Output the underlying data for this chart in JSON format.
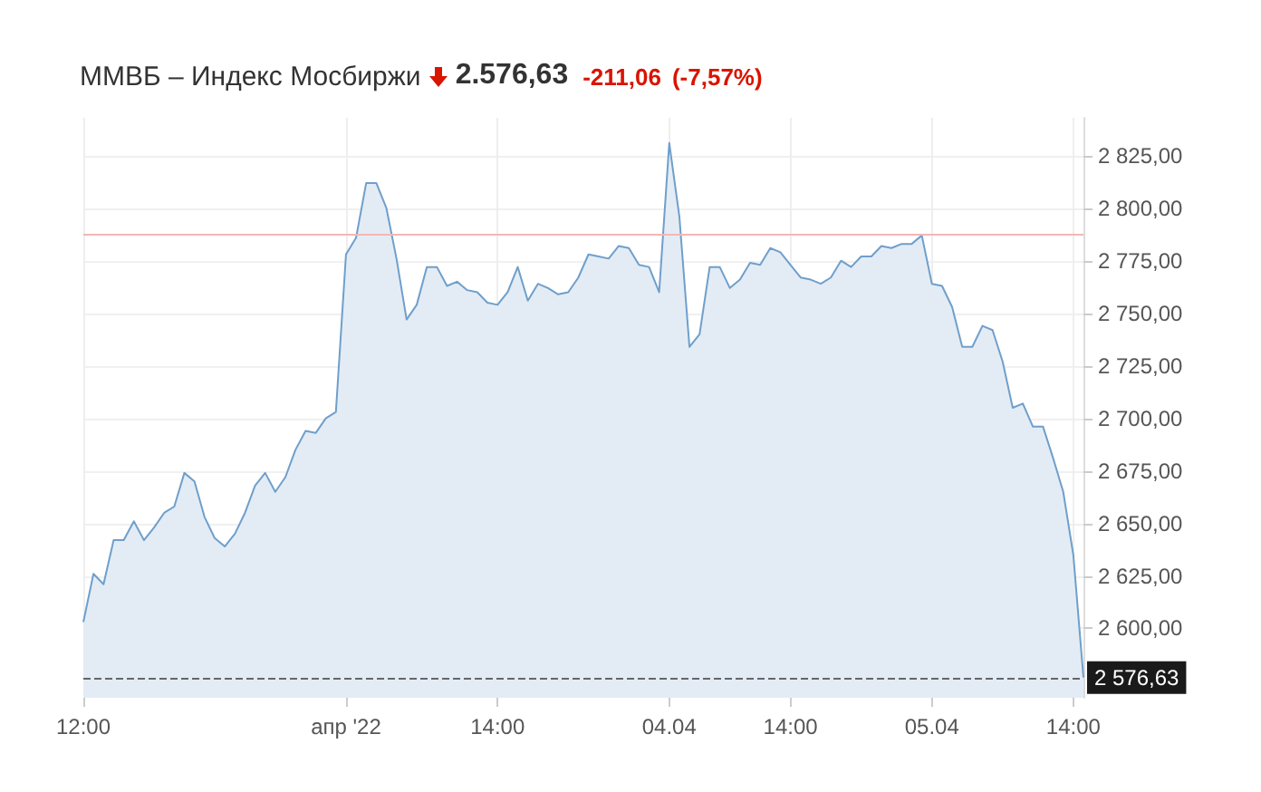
{
  "chart_data": {
    "type": "area",
    "title": "ММВБ – Индекс Мосбиржи",
    "annotations": [
      "2.576,63",
      "-211,06",
      "(-7,57%)"
    ],
    "categories": [
      "12:00",
      null,
      null,
      null,
      null,
      null,
      null,
      null,
      null,
      null,
      null,
      null,
      null,
      null,
      null,
      null,
      null,
      null,
      null,
      null,
      null,
      null,
      null,
      null,
      null,
      null,
      "апр '22",
      null,
      null,
      null,
      null,
      null,
      null,
      null,
      null,
      null,
      null,
      null,
      null,
      null,
      null,
      "14:00",
      null,
      null,
      null,
      null,
      null,
      null,
      null,
      null,
      null,
      null,
      null,
      null,
      null,
      null,
      null,
      null,
      "04.04",
      null,
      null,
      null,
      null,
      null,
      null,
      null,
      null,
      null,
      null,
      null,
      "14:00",
      null,
      null,
      null,
      null,
      null,
      null,
      null,
      null,
      null,
      null,
      null,
      null,
      null,
      "05.04",
      null,
      null,
      null,
      null,
      null,
      null,
      null,
      null,
      null,
      null,
      null,
      null,
      null,
      "14:00",
      null
    ],
    "series": [
      {
        "color": "#6f9fcb",
        "values": [
          2603,
          2626,
          2621,
          2642,
          2642,
          2651,
          2642,
          2648,
          2655,
          2658,
          2674,
          2670,
          2653,
          2643,
          2639,
          2645,
          2655,
          2668,
          2674,
          2665,
          2672,
          2685,
          2694,
          2693,
          2700,
          2703,
          2778,
          2786,
          2812,
          2812,
          2800,
          2776,
          2747,
          2754,
          2772,
          2772,
          2763,
          2765,
          2761,
          2760,
          2755,
          2754,
          2760,
          2772,
          2756,
          2764,
          2762,
          2759,
          2760,
          2767,
          2778,
          2777,
          2776,
          2782,
          2781,
          2773,
          2772,
          2760,
          2831,
          2796,
          2734,
          2740,
          2772,
          2772,
          2762,
          2766,
          2774,
          2773,
          2781,
          2779,
          2773,
          2767,
          2766,
          2764,
          2767,
          2775,
          2772,
          2777,
          2777,
          2782,
          2781,
          2783,
          2783,
          2787,
          2764,
          2763,
          2753,
          2734,
          2734,
          2744,
          2742,
          2727,
          2705,
          2707,
          2696,
          2696,
          2681,
          2665,
          2635,
          2576.63
        ]
      }
    ],
    "ylim": [
      2567,
      2843
    ],
    "yticks": [
      {
        "value": 2600,
        "label": "2 600,00"
      },
      {
        "value": 2625,
        "label": "2 625,00"
      },
      {
        "value": 2650,
        "label": "2 650,00"
      },
      {
        "value": 2675,
        "label": "2 675,00"
      },
      {
        "value": 2700,
        "label": "2 700,00"
      },
      {
        "value": 2725,
        "label": "2 725,00"
      },
      {
        "value": 2750,
        "label": "2 750,00"
      },
      {
        "value": 2775,
        "label": "2 775,00"
      },
      {
        "value": 2800,
        "label": "2 800,00"
      },
      {
        "value": 2825,
        "label": "2 825,00"
      }
    ],
    "ref_lines": [
      {
        "axis": "y",
        "value": 2787.69,
        "color": "#f4b6b6",
        "line_style": "solid"
      },
      {
        "axis": "y",
        "value": 2576.63,
        "label": "2 576,63",
        "color": "#666666",
        "line_style": "dashed"
      }
    ],
    "grid": true,
    "marker": "none",
    "line_style": "solid"
  }
}
